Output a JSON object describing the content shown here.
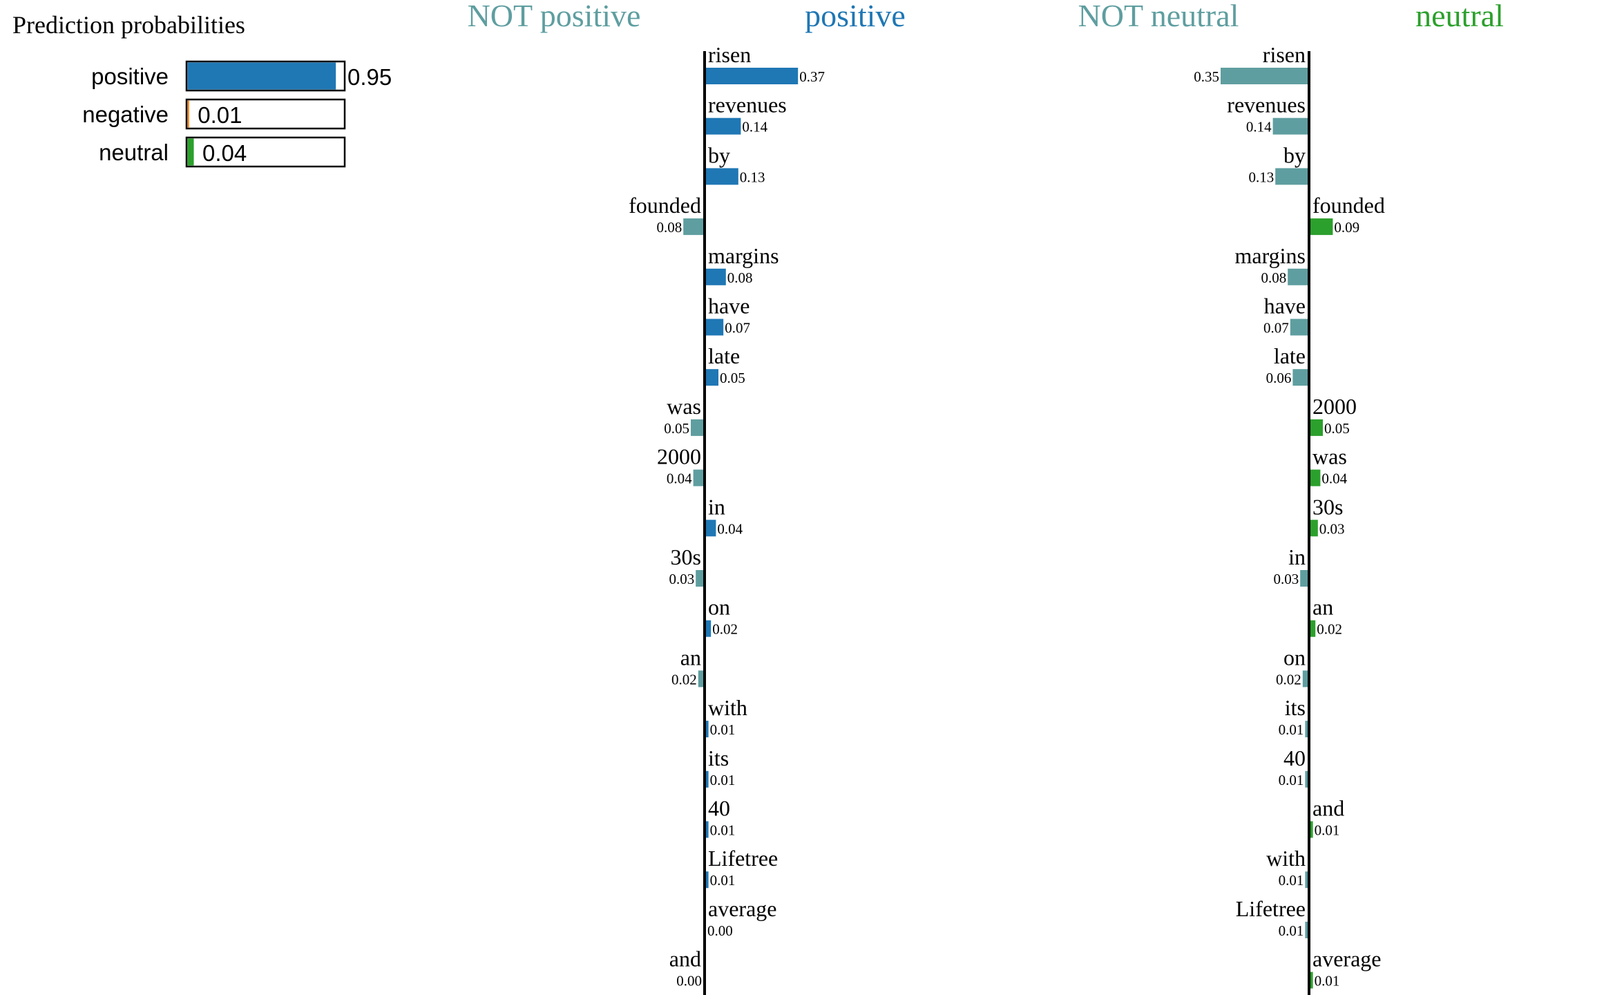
{
  "colors": {
    "positive": "#1f77b4",
    "not_class": "#5f9ea0",
    "neutral": "#2ca02c",
    "negative": "#ff7f0e",
    "axis": "#000000",
    "text": "#000000"
  },
  "prediction_panel": {
    "title": "Prediction probabilities"
  },
  "chart_data": [
    {
      "type": "bar",
      "orientation": "horizontal",
      "title": "Prediction probabilities",
      "categories": [
        "positive",
        "negative",
        "neutral"
      ],
      "values": [
        0.95,
        0.01,
        0.04
      ],
      "value_labels": [
        "0.95",
        "0.01",
        "0.04"
      ],
      "colors": [
        "#1f77b4",
        "#ff7f0e",
        "#2ca02c"
      ],
      "xlim": [
        0,
        1
      ]
    },
    {
      "type": "bar",
      "orientation": "horizontal",
      "left_label": "NOT positive",
      "right_label": "positive",
      "categories": [
        "risen",
        "revenues",
        "by",
        "founded",
        "margins",
        "have",
        "late",
        "was",
        "2000",
        "in",
        "30s",
        "on",
        "an",
        "with",
        "its",
        "40",
        "Lifetree",
        "average",
        "and"
      ],
      "values": [
        0.37,
        0.14,
        0.13,
        -0.08,
        0.08,
        0.07,
        0.05,
        -0.05,
        -0.04,
        0.04,
        -0.03,
        0.02,
        -0.02,
        0.01,
        0.01,
        0.01,
        0.01,
        0.0,
        -0.0
      ],
      "value_labels": [
        "0.37",
        "0.14",
        "0.13",
        "0.08",
        "0.08",
        "0.07",
        "0.05",
        "0.05",
        "0.04",
        "0.04",
        "0.03",
        "0.02",
        "0.02",
        "0.01",
        "0.01",
        "0.01",
        "0.01",
        "0.00",
        "0.00"
      ],
      "positive_color": "#1f77b4",
      "negative_color": "#5f9ea0"
    },
    {
      "type": "bar",
      "orientation": "horizontal",
      "left_label": "NOT neutral",
      "right_label": "neutral",
      "categories": [
        "risen",
        "revenues",
        "by",
        "founded",
        "margins",
        "have",
        "late",
        "2000",
        "was",
        "30s",
        "in",
        "an",
        "on",
        "its",
        "40",
        "and",
        "with",
        "Lifetree",
        "average"
      ],
      "values": [
        -0.35,
        -0.14,
        -0.13,
        0.09,
        -0.08,
        -0.07,
        -0.06,
        0.05,
        0.04,
        0.03,
        -0.03,
        0.02,
        -0.02,
        -0.01,
        -0.01,
        0.01,
        -0.01,
        -0.01,
        0.01
      ],
      "value_labels": [
        "0.35",
        "0.14",
        "0.13",
        "0.09",
        "0.08",
        "0.07",
        "0.06",
        "0.05",
        "0.04",
        "0.03",
        "0.03",
        "0.02",
        "0.02",
        "0.01",
        "0.01",
        "0.01",
        "0.01",
        "0.01",
        "0.01"
      ],
      "positive_color": "#2ca02c",
      "negative_color": "#5f9ea0"
    }
  ]
}
